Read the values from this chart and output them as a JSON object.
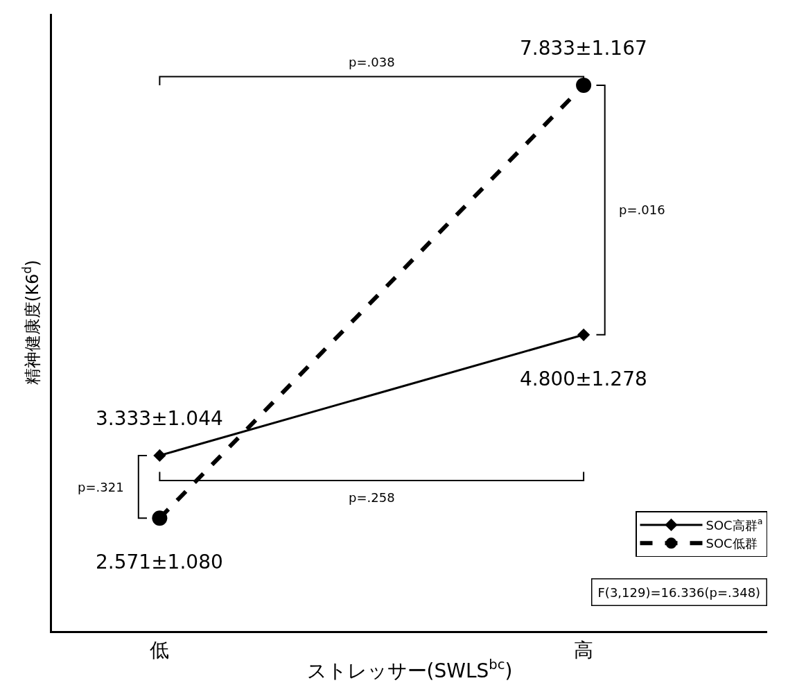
{
  "chart_data": {
    "type": "line",
    "xlabel": "ストレッサー(SWLS$^{bc}$)",
    "ylabel": "精神健康度(K6$^{d}$)",
    "categories": [
      "低",
      "高"
    ],
    "series": [
      {
        "name": "SOC高群$^{a}$",
        "color": "#000000",
        "marker": "diamond",
        "line_style": "solid",
        "values": [
          3.333,
          4.8
        ],
        "value_labels": [
          "3.333±1.044",
          "4.800±1.278"
        ]
      },
      {
        "name": "SOC低群",
        "color": "#000000",
        "marker": "circle",
        "line_style": "dashed",
        "values": [
          2.571,
          7.833
        ],
        "value_labels": [
          "2.571±1.080",
          "7.833±1.167"
        ]
      }
    ],
    "annotations": [
      "p=.038",
      "p=.016",
      "p=.321",
      "p=.258",
      "F(3,129)=16.336(p=.348)"
    ],
    "ylim": [
      1.2,
      8.7
    ],
    "legend": "bottom right",
    "grid": false,
    "tick_labels": "x"
  }
}
